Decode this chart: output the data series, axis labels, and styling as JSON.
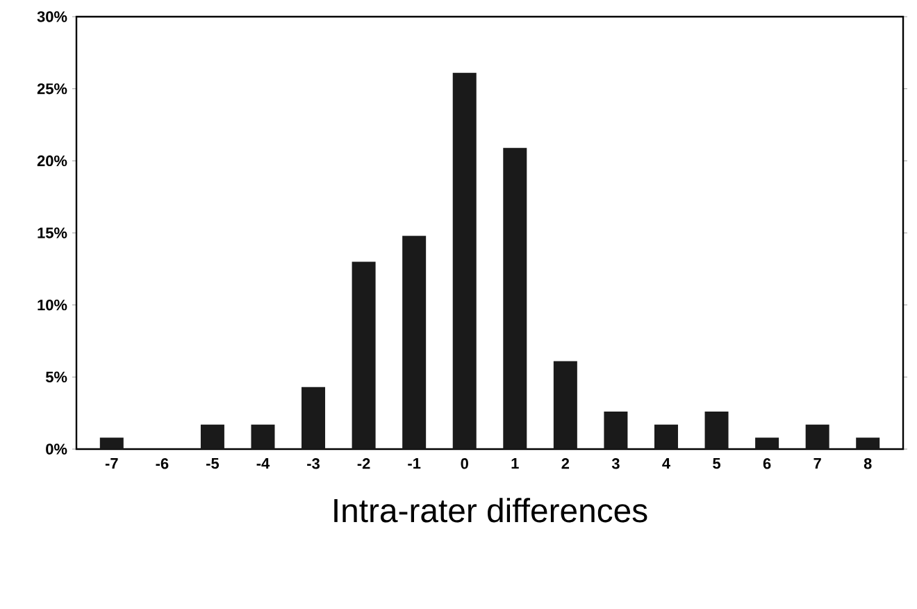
{
  "chart_data": {
    "type": "bar",
    "xlabel": "Intra-rater differences",
    "categories": [
      "-7",
      "-6",
      "-5",
      "-4",
      "-3",
      "-2",
      "-1",
      "0",
      "1",
      "2",
      "3",
      "4",
      "5",
      "6",
      "7",
      "8"
    ],
    "values": [
      0.8,
      0,
      1.7,
      1.7,
      4.3,
      13.0,
      14.8,
      26.1,
      20.9,
      6.1,
      2.6,
      1.7,
      2.6,
      0.8,
      1.7,
      0.8
    ],
    "color": "#1a1a1a",
    "ylim": [
      0,
      30
    ],
    "yticks": [
      {
        "value": 0,
        "label": "0%"
      },
      {
        "value": 5,
        "label": "5%"
      },
      {
        "value": 10,
        "label": "10%"
      },
      {
        "value": 15,
        "label": "15%"
      },
      {
        "value": 20,
        "label": "20%"
      },
      {
        "value": 25,
        "label": "25%"
      },
      {
        "value": 30,
        "label": "30%"
      }
    ],
    "grid": false
  }
}
